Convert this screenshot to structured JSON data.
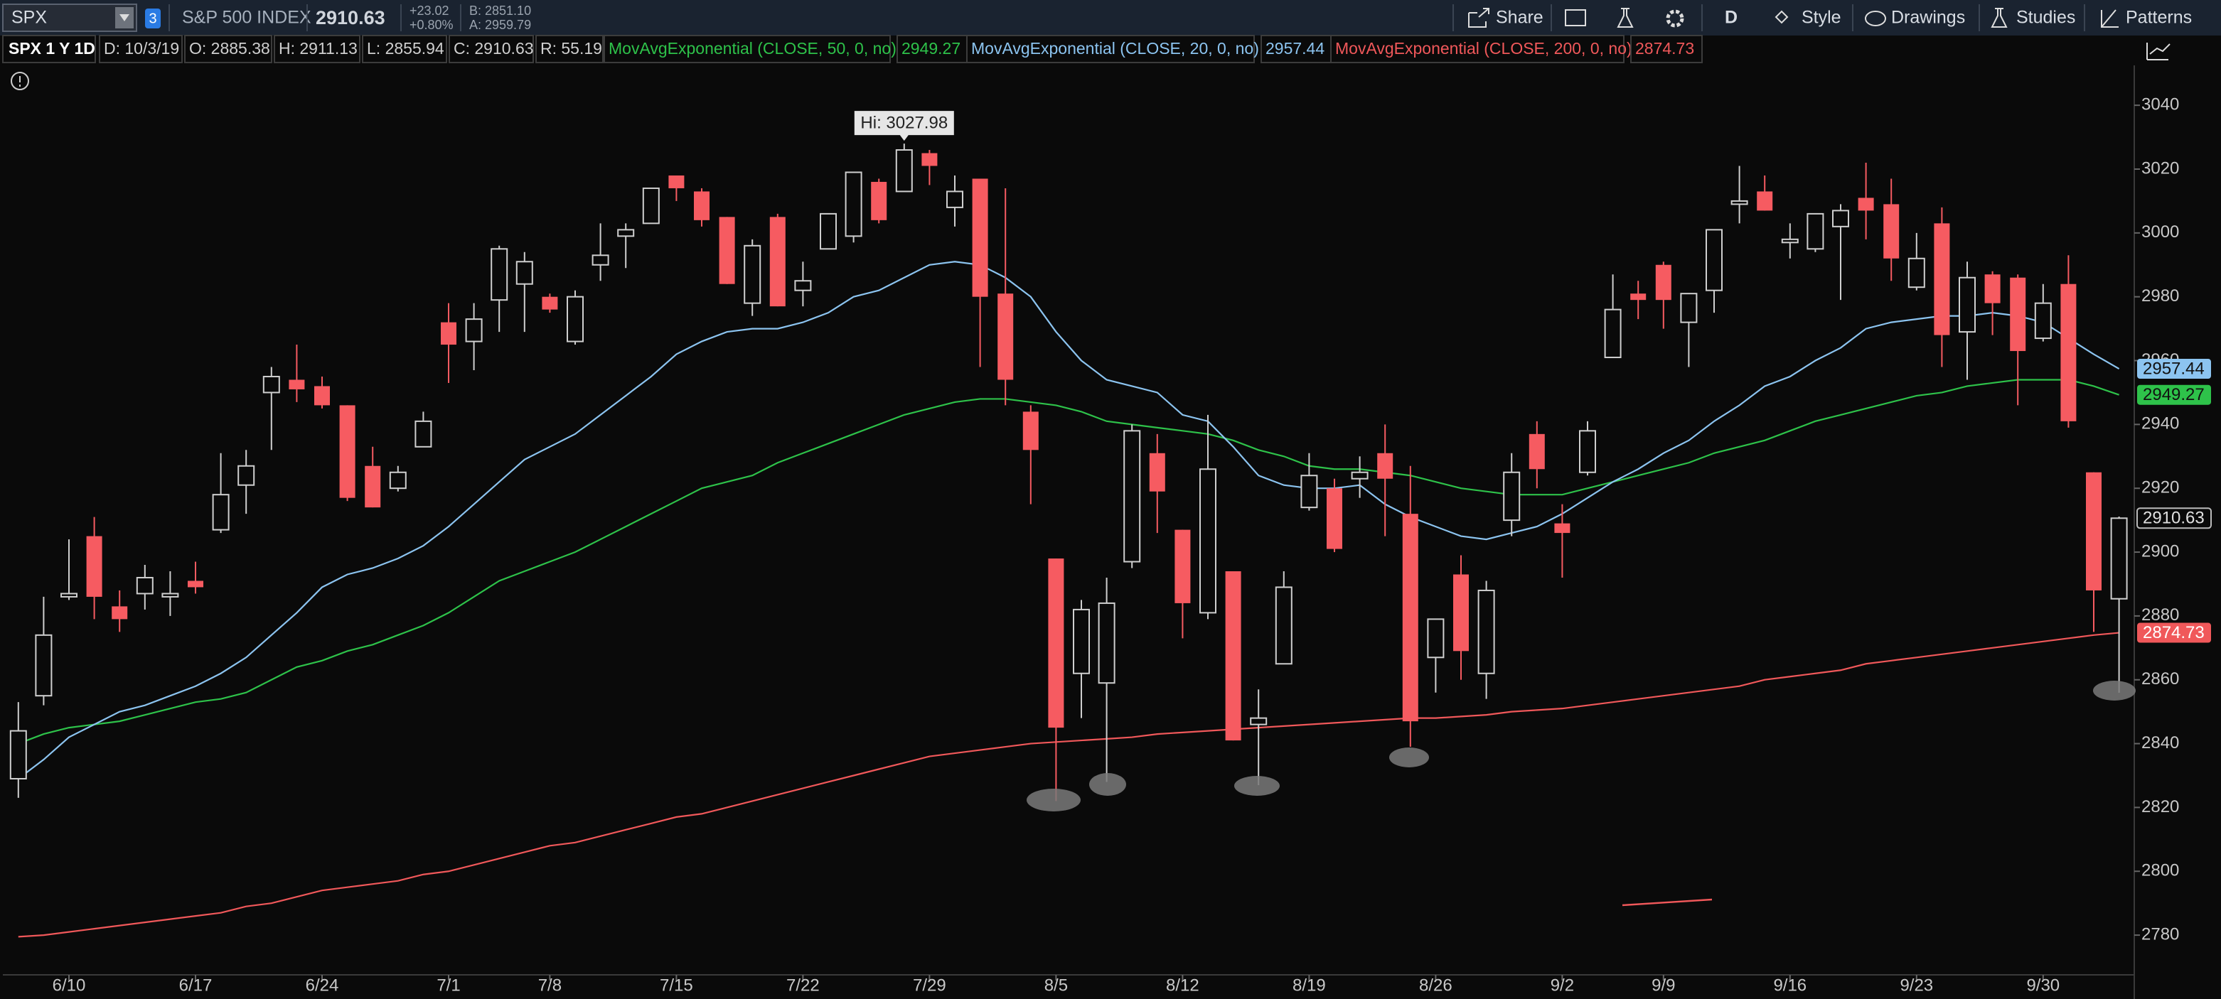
{
  "header": {
    "symbol": "SPX",
    "link": "3",
    "description": "S&P 500 INDEX",
    "last": "2910.63",
    "change": "+23.02",
    "change_pct": "+0.80%",
    "bid": "B: 2851.10",
    "ask": "A: 2959.79",
    "buttons": [
      "Share",
      "D",
      "Style",
      "Drawings",
      "Studies",
      "Patterns"
    ]
  },
  "study_bar": {
    "chart": "SPX 1 Y 1D",
    "fields": [
      "D: 10/3/19",
      "O: 2885.38",
      "H: 2911.13",
      "L: 2855.94",
      "C: 2910.63",
      "R: 55.19"
    ]
  },
  "chart_data": {
    "type": "candlestick",
    "categories": [
      null,
      null,
      "6/10",
      null,
      null,
      null,
      null,
      "6/17",
      null,
      null,
      null,
      null,
      "6/24",
      null,
      null,
      null,
      null,
      "7/1",
      null,
      null,
      null,
      "7/8",
      null,
      null,
      null,
      null,
      "7/15",
      null,
      null,
      null,
      null,
      "7/22",
      null,
      null,
      null,
      null,
      "7/29",
      null,
      null,
      null,
      null,
      "8/5",
      null,
      null,
      null,
      null,
      "8/12",
      null,
      null,
      null,
      null,
      "8/19",
      null,
      null,
      null,
      null,
      "8/26",
      null,
      null,
      null,
      null,
      "9/2",
      null,
      null,
      null,
      "9/9",
      null,
      null,
      null,
      null,
      "9/16",
      null,
      null,
      null,
      null,
      "9/23",
      null,
      null,
      null,
      null,
      "9/30",
      null,
      null,
      null
    ],
    "open": [
      2829,
      2855,
      2886,
      2905,
      2883,
      2887,
      2886,
      2891,
      2907,
      2921,
      2950,
      2954,
      2952,
      2946,
      2927,
      2920,
      2933,
      2972,
      2966,
      2979,
      2984,
      2980,
      2966,
      2990,
      2999,
      3003,
      3018,
      3013,
      3005,
      2978,
      3005,
      2982,
      2995,
      2999,
      3016,
      3013,
      3025,
      3008,
      3017,
      2981,
      2944,
      2898,
      2862,
      2859,
      2897,
      2931,
      2907,
      2881,
      2894,
      2846,
      2865,
      2914,
      2920,
      2923,
      2931,
      2912,
      2867,
      2893,
      2862,
      2910,
      2937,
      2909,
      2925,
      2961,
      2981,
      2990,
      2972,
      2982,
      3009,
      3013,
      2997,
      2995,
      3002,
      3011,
      3009,
      2983,
      3003,
      2969,
      2987,
      2986,
      2967,
      2984,
      2925,
      2885.38
    ],
    "high": [
      2853,
      2886,
      2904,
      2911,
      2888,
      2896,
      2894,
      2897,
      2931,
      2932,
      2958,
      2965,
      2955,
      2946,
      2933,
      2927,
      2944,
      2978,
      2978,
      2996,
      2994,
      2981,
      2982,
      3003,
      3003,
      3014,
      3018,
      3014,
      3005,
      2998,
      3006,
      2991,
      3006,
      3019,
      3017,
      3027.98,
      3026,
      3018,
      3017,
      3014,
      2946,
      2898,
      2885,
      2892,
      2940,
      2937,
      2907,
      2943,
      2894,
      2857,
      2894,
      2931,
      2923,
      2930,
      2940,
      2927,
      2879,
      2899,
      2891,
      2931,
      2941,
      2915,
      2941,
      2987,
      2985,
      2991,
      2981,
      3001,
      3021,
      3018,
      3003,
      3006,
      3009,
      3022,
      3017,
      3000,
      3008,
      2991,
      2988,
      2987,
      2984,
      2993,
      2925,
      2911.13
    ],
    "low": [
      2823,
      2852,
      2885,
      2879,
      2875,
      2882,
      2880,
      2887,
      2906,
      2912,
      2932,
      2947,
      2945,
      2916,
      2914,
      2919,
      2933,
      2953,
      2957,
      2969,
      2969,
      2975,
      2965,
      2985,
      2989,
      3003,
      3010,
      3002,
      2984,
      2974,
      2977,
      2977,
      2995,
      2997,
      3003,
      3013,
      3015,
      3002,
      2958,
      2946,
      2915,
      2822,
      2848,
      2828,
      2895,
      2906,
      2873,
      2879,
      2841,
      2827,
      2865,
      2913,
      2900,
      2917,
      2905,
      2839,
      2856,
      2860,
      2854,
      2905,
      2920,
      2892,
      2924,
      2961,
      2973,
      2970,
      2958,
      2975,
      3003,
      3007,
      2992,
      2994,
      2979,
      2998,
      2985,
      2982,
      2958,
      2954,
      2968,
      2946,
      2966,
      2939,
      2875,
      2855.94
    ],
    "close": [
      2844,
      2874,
      2887,
      2886,
      2879,
      2892,
      2887,
      2889,
      2918,
      2927,
      2955,
      2951,
      2946,
      2917,
      2914,
      2925,
      2941,
      2965,
      2973,
      2995,
      2991,
      2976,
      2980,
      2993,
      3001,
      3014,
      3014,
      3004,
      2984,
      2996,
      2977,
      2985,
      3006,
      3019,
      3004,
      3026,
      3021,
      3013,
      2980,
      2954,
      2932,
      2845,
      2882,
      2884,
      2938,
      2919,
      2884,
      2926,
      2841,
      2848,
      2889,
      2924,
      2901,
      2925,
      2923,
      2847,
      2879,
      2869,
      2888,
      2925,
      2926,
      2906,
      2938,
      2976,
      2979,
      2979,
      2981,
      3001,
      3010,
      3007,
      2998,
      3006,
      3007,
      3007,
      2992,
      2992,
      2968,
      2986,
      2978,
      2963,
      2978,
      2941,
      2888,
      2910.63
    ],
    "up_color": "#cfcfcf",
    "down_color": "#f65b61",
    "series": [
      {
        "name": "MovAvgExponential (CLOSE, 50, 0, no)",
        "color": "#2ec24a",
        "values": [
          2840,
          2843,
          2845,
          2846,
          2847,
          2849,
          2851,
          2853,
          2854,
          2856,
          2860,
          2864,
          2866,
          2869,
          2871,
          2874,
          2877,
          2881,
          2886,
          2891,
          2894,
          2897,
          2900,
          2904,
          2908,
          2912,
          2916,
          2920,
          2922,
          2924,
          2928,
          2931,
          2934,
          2937,
          2940,
          2943,
          2945,
          2947,
          2948,
          2948,
          2947,
          2946,
          2944,
          2941,
          2940,
          2939,
          2938,
          2937,
          2935,
          2932,
          2930,
          2927,
          2926,
          2926,
          2925,
          2924,
          2922,
          2920,
          2919,
          2918,
          2918,
          2918,
          2920,
          2922,
          2924,
          2926,
          2928,
          2931,
          2933,
          2935,
          2938,
          2941,
          2943,
          2945,
          2947,
          2949,
          2950,
          2952,
          2953,
          2954,
          2954,
          2954,
          2952,
          2949.27
        ]
      },
      {
        "name": "MovAvgExponential (CLOSE, 20, 0, no)",
        "color": "#8cc4f0",
        "values": [
          2829,
          2835,
          2842,
          2846,
          2850,
          2852,
          2855,
          2858,
          2862,
          2867,
          2874,
          2881,
          2889,
          2893,
          2895,
          2898,
          2902,
          2908,
          2915,
          2922,
          2929,
          2933,
          2937,
          2943,
          2949,
          2955,
          2962,
          2966,
          2969,
          2970,
          2970,
          2972,
          2975,
          2980,
          2982,
          2986,
          2990,
          2991,
          2990,
          2986,
          2980,
          2969,
          2960,
          2954,
          2952,
          2950,
          2943,
          2941,
          2933,
          2924,
          2921,
          2920,
          2920,
          2921,
          2915,
          2911,
          2908,
          2905,
          2904,
          2906,
          2908,
          2912,
          2917,
          2922,
          2926,
          2931,
          2935,
          2941,
          2946,
          2952,
          2955,
          2960,
          2964,
          2970,
          2972,
          2973,
          2974,
          2974,
          2975,
          2974,
          2972,
          2967,
          2962,
          2957.44
        ]
      },
      {
        "name": "MovAvgExponential (CLOSE, 200, 0, no)",
        "color": "#f0585a",
        "values": [
          2779.5,
          2780,
          2781,
          2782,
          2783,
          2784,
          2785,
          2786,
          2787,
          2789,
          2790,
          2792,
          2794,
          2795,
          2796,
          2797,
          2799,
          2800,
          2802,
          2804,
          2806,
          2808,
          2809,
          2811,
          2813,
          2815,
          2817,
          2818,
          2820,
          2822,
          2824,
          2826,
          2828,
          2830,
          2832,
          2834,
          2836,
          2837,
          2838,
          2839,
          2840,
          2840.5,
          2841,
          2841.5,
          2842,
          2843,
          2843.5,
          2844,
          2844.5,
          2845,
          2845.5,
          2846,
          2846.5,
          2847,
          2847.5,
          2848,
          2848,
          2848.5,
          2849,
          2850,
          2850.5,
          2851,
          2852,
          2853,
          2854,
          2855,
          2856,
          2857,
          2858,
          2860,
          2861,
          2862,
          2863,
          2865,
          2866,
          2867,
          2868,
          2869,
          2870,
          2871,
          2872,
          2873,
          2874,
          2874.73
        ]
      }
    ],
    "hi_label": "Hi: 3027.98",
    "ylim": [
      2768,
      3052.5
    ],
    "yticks": [
      2780,
      2800,
      2820,
      2840,
      2860,
      2880,
      2900,
      2920,
      2940,
      2960,
      2980,
      3000,
      3020,
      3040
    ]
  }
}
